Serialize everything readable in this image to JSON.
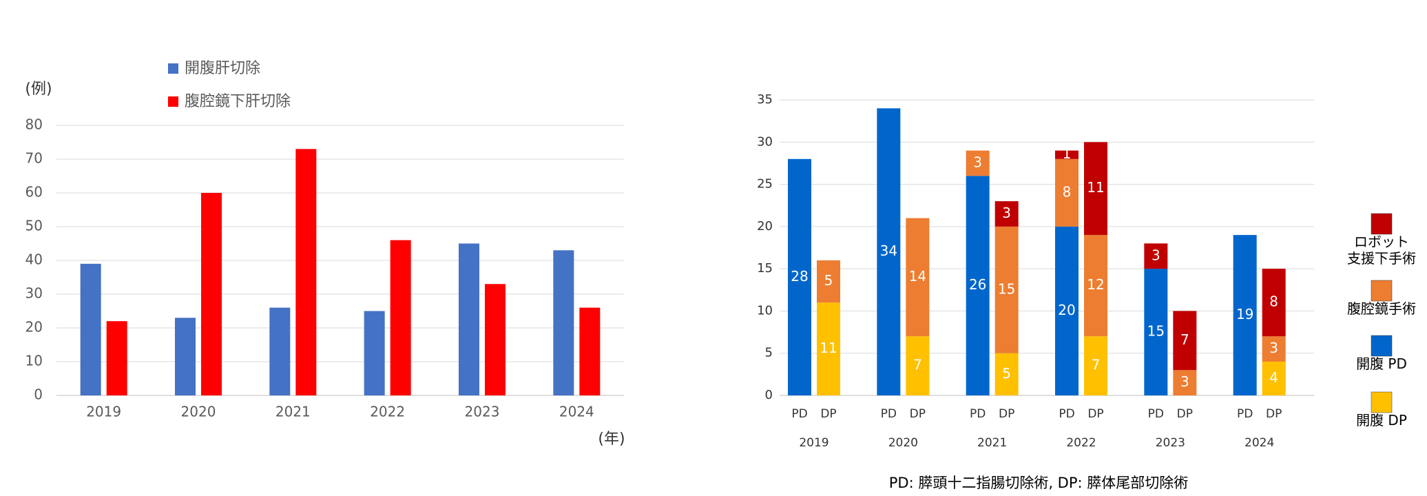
{
  "chart_data": [
    {
      "type": "bar",
      "ylabel": "(例)",
      "xlabel": "(年)",
      "ylim": [
        0,
        80
      ],
      "yticks": [
        "0",
        "10",
        "20",
        "30",
        "40",
        "50",
        "60",
        "70",
        "80"
      ],
      "categories": [
        "2019",
        "2020",
        "2021",
        "2022",
        "2023",
        "2024"
      ],
      "grid": true,
      "legend_position": "top",
      "series": [
        {
          "name": "開腹肝切除",
          "color": "#4472C4",
          "values": [
            39,
            23,
            26,
            25,
            45,
            43
          ]
        },
        {
          "name": "腹腔鏡下肝切除",
          "color": "#FF0000",
          "values": [
            22,
            60,
            73,
            46,
            33,
            26
          ]
        }
      ]
    },
    {
      "type": "bar",
      "stacked": true,
      "ylim": [
        0,
        35
      ],
      "yticks": [
        "0",
        "5",
        "10",
        "15",
        "20",
        "25",
        "30",
        "35"
      ],
      "grid": true,
      "legend_position": "right",
      "groups": [
        "2019",
        "2020",
        "2021",
        "2022",
        "2023",
        "2024"
      ],
      "subcategories": [
        "PD",
        "DP"
      ],
      "series": [
        {
          "name": "開腹 PD",
          "legend_label": "開腹 PD",
          "color": "#0066CC",
          "values": [
            [
              28,
              0
            ],
            [
              34,
              0
            ],
            [
              26,
              0
            ],
            [
              20,
              0
            ],
            [
              15,
              0
            ],
            [
              19,
              0
            ]
          ]
        },
        {
          "name": "開腹 DP",
          "legend_label": "開腹 DP",
          "color": "#FFC000",
          "values": [
            [
              0,
              11
            ],
            [
              0,
              7
            ],
            [
              0,
              5
            ],
            [
              0,
              7
            ],
            [
              0,
              0
            ],
            [
              0,
              4
            ]
          ]
        },
        {
          "name": "腹腔鏡手術",
          "legend_label": "腹腔鏡手術",
          "color": "#ED7D31",
          "values": [
            [
              0,
              5
            ],
            [
              0,
              14
            ],
            [
              3,
              15
            ],
            [
              8,
              12
            ],
            [
              0,
              3
            ],
            [
              0,
              3
            ]
          ]
        },
        {
          "name": "ロボット支援下手術",
          "legend_label": "ロボット\n支援下手術",
          "color": "#C00000",
          "values": [
            [
              0,
              0
            ],
            [
              0,
              0
            ],
            [
              0,
              3
            ],
            [
              1,
              11
            ],
            [
              3,
              7
            ],
            [
              0,
              8
            ]
          ]
        }
      ],
      "footnote": "PD: 膵頭十二指腸切除術, DP: 膵体尾部切除術"
    }
  ]
}
